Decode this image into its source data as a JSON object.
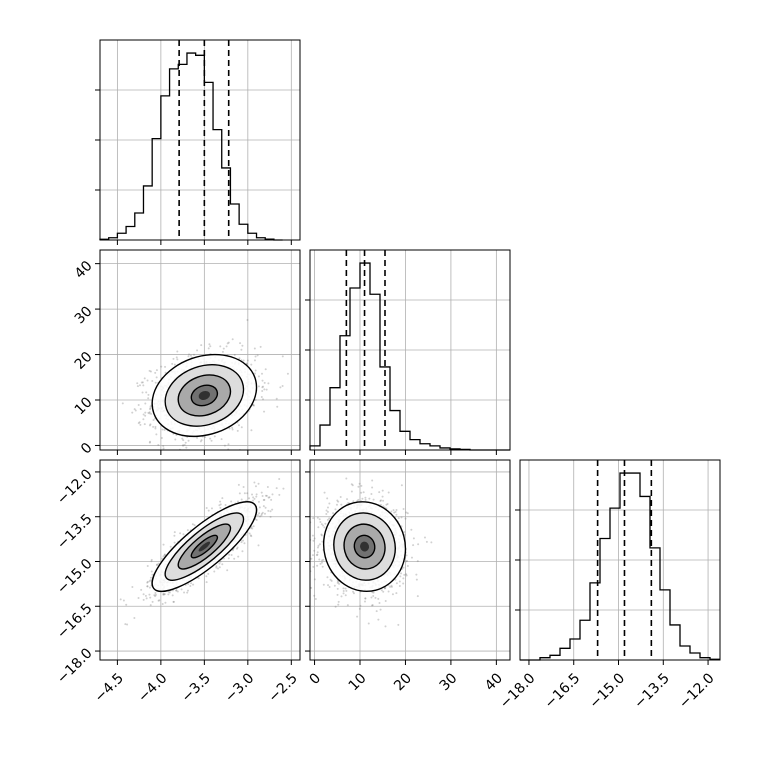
{
  "chart_data": {
    "type": "corner",
    "title": "",
    "grid": true,
    "parameters": [
      {
        "name": "",
        "range": [
          -4.7,
          -2.4
        ],
        "ticks": [
          -4.5,
          -4.0,
          -3.5,
          -3.0,
          -2.5
        ],
        "tick_labels": [
          "−4.5",
          "−4.0",
          "−3.5",
          "−3.0",
          "−2.5"
        ],
        "quantiles": [
          -3.79,
          -3.5,
          -3.22
        ]
      },
      {
        "name": "",
        "range": [
          -1,
          43
        ],
        "ticks": [
          0,
          10,
          20,
          30,
          40
        ],
        "tick_labels": [
          "0",
          "10",
          "20",
          "30",
          "40"
        ],
        "quantiles": [
          7.0,
          11.0,
          15.5
        ]
      },
      {
        "name": "",
        "range": [
          -18.3,
          -11.6
        ],
        "ticks": [
          -18.0,
          -16.5,
          -15.0,
          -13.5,
          -12.0
        ],
        "tick_labels": [
          "−18.0",
          "−16.5",
          "−15.0",
          "−13.5",
          "−12.0"
        ],
        "quantiles": [
          -15.7,
          -14.8,
          -13.9
        ]
      }
    ],
    "histograms": [
      {
        "param": 0,
        "bin_start": -4.7,
        "bin_width": 0.1,
        "counts": [
          0.3,
          1,
          3,
          6,
          12,
          24,
          45,
          64,
          76,
          78,
          83,
          82,
          70,
          49,
          32,
          16,
          7,
          3,
          1,
          0.4,
          0
        ]
      },
      {
        "param": 1,
        "bin_start": -1,
        "bin_width": 2.2,
        "counts": [
          2,
          12,
          30,
          55,
          78,
          90,
          75,
          40,
          19,
          9,
          5,
          3,
          2,
          1,
          0.5,
          0.3,
          0,
          0,
          0,
          0
        ]
      },
      {
        "param": 2,
        "bin_start": -18.3,
        "bin_width": 0.335,
        "counts": [
          0,
          0,
          1,
          2,
          5,
          9,
          17,
          33,
          52,
          65,
          80,
          80,
          70,
          48,
          30,
          15,
          6,
          3,
          1,
          0.3
        ]
      }
    ],
    "pairs": [
      {
        "x_param": 0,
        "y_param": 1,
        "mean": [
          -3.5,
          11.0
        ],
        "std": [
          0.3,
          4.5
        ],
        "corr": 0.2
      },
      {
        "x_param": 0,
        "y_param": 2,
        "mean": [
          -3.5,
          -14.5
        ],
        "std": [
          0.3,
          0.75
        ],
        "corr": 0.82
      },
      {
        "x_param": 1,
        "y_param": 2,
        "mean": [
          11.0,
          -14.5
        ],
        "std": [
          4.5,
          0.75
        ],
        "corr": -0.05
      }
    ]
  }
}
